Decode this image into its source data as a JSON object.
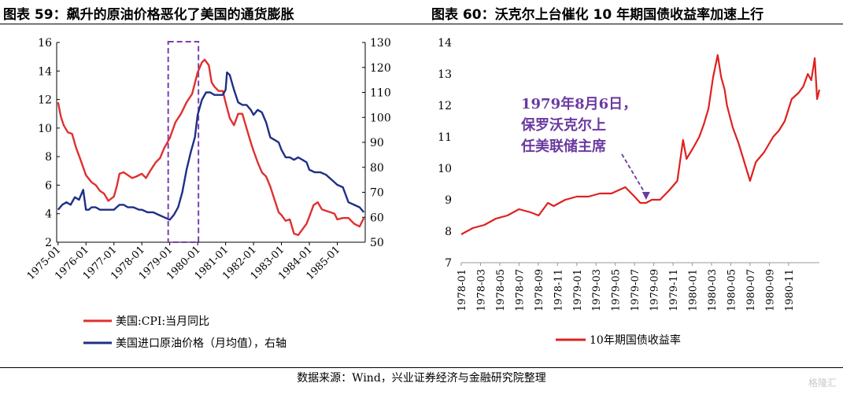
{
  "page": {
    "left_title": "图表 59：飙升的原油价格恶化了美国的通货膨胀",
    "right_title": "图表 60：沃克尔上台催化 10 年期国债收益率加速上行",
    "source": "数据来源：Wind，兴业证券经济与金融研究院整理",
    "watermark": "格隆汇"
  },
  "chart_data": [
    {
      "type": "line",
      "title": "图表 59：飙升的原油价格恶化了美国的通货膨胀",
      "x_ticks": [
        "1975-01",
        "1976-01",
        "1977-01",
        "1978-01",
        "1979-01",
        "1980-01",
        "1981-01",
        "1982-01",
        "1983-01",
        "1984-01",
        "1985-01"
      ],
      "ylim_left": [
        2,
        16
      ],
      "yticks_left": [
        "2",
        "4",
        "6",
        "8",
        "10",
        "12",
        "14",
        "16"
      ],
      "ylim_right": [
        50,
        130
      ],
      "yticks_right": [
        "50",
        "60",
        "70",
        "80",
        "90",
        "100",
        "110",
        "120",
        "130"
      ],
      "highlight_box": {
        "x_from": "1979-01",
        "x_to": "1980-01"
      },
      "legend_position": "bottom-left",
      "series": [
        {
          "name": "美国:CPI:当月同比",
          "axis": "left",
          "color": "#e03030",
          "x": [
            1975.0,
            1975.1,
            1975.2,
            1975.35,
            1975.5,
            1975.65,
            1975.8,
            1976.0,
            1976.2,
            1976.35,
            1976.5,
            1976.65,
            1976.8,
            1977.0,
            1977.1,
            1977.2,
            1977.35,
            1977.5,
            1977.65,
            1977.8,
            1978.0,
            1978.15,
            1978.3,
            1978.5,
            1978.65,
            1978.8,
            1979.0,
            1979.2,
            1979.4,
            1979.6,
            1979.8,
            1980.0,
            1980.15,
            1980.25,
            1980.4,
            1980.5,
            1980.6,
            1980.75,
            1980.9,
            1981.0,
            1981.15,
            1981.3,
            1981.45,
            1981.6,
            1981.75,
            1981.9,
            1982.0,
            1982.15,
            1982.3,
            1982.45,
            1982.6,
            1982.75,
            1982.9,
            1983.0,
            1983.15,
            1983.3,
            1983.45,
            1983.6,
            1983.75,
            1983.9,
            1984.0,
            1984.15,
            1984.3,
            1984.45,
            1984.6,
            1984.75,
            1984.9,
            1985.0,
            1985.2,
            1985.4,
            1985.6,
            1985.8,
            1985.95
          ],
          "values": [
            11.8,
            10.8,
            10.2,
            9.7,
            9.6,
            8.6,
            7.8,
            6.7,
            6.2,
            6.0,
            5.6,
            5.4,
            4.9,
            5.2,
            5.9,
            6.8,
            6.9,
            6.7,
            6.5,
            6.6,
            6.8,
            6.5,
            7.0,
            7.6,
            7.9,
            8.6,
            9.3,
            10.4,
            11.0,
            11.8,
            12.4,
            13.9,
            14.6,
            14.8,
            14.4,
            13.2,
            12.9,
            12.6,
            12.6,
            11.8,
            10.7,
            10.2,
            11.0,
            11.0,
            10.0,
            9.0,
            8.4,
            7.6,
            6.9,
            6.6,
            5.9,
            5.0,
            4.1,
            3.9,
            3.5,
            3.6,
            2.6,
            2.5,
            2.9,
            3.3,
            3.8,
            4.6,
            4.8,
            4.3,
            4.2,
            4.1,
            4.0,
            3.6,
            3.7,
            3.7,
            3.3,
            3.1,
            3.7
          ]
        },
        {
          "name": "美国进口原油价格（月均值），右轴",
          "axis": "right",
          "color": "#1f2f86",
          "x": [
            1975.0,
            1975.15,
            1975.3,
            1975.45,
            1975.6,
            1975.75,
            1975.9,
            1976.0,
            1976.1,
            1976.2,
            1976.35,
            1976.5,
            1976.65,
            1976.8,
            1977.0,
            1977.2,
            1977.35,
            1977.5,
            1977.7,
            1977.9,
            1978.0,
            1978.2,
            1978.4,
            1978.6,
            1978.8,
            1979.0,
            1979.15,
            1979.3,
            1979.45,
            1979.6,
            1979.75,
            1979.9,
            1980.0,
            1980.15,
            1980.3,
            1980.45,
            1980.6,
            1980.75,
            1980.9,
            1981.0,
            1981.05,
            1981.15,
            1981.3,
            1981.45,
            1981.6,
            1981.75,
            1981.9,
            1982.0,
            1982.15,
            1982.3,
            1982.45,
            1982.6,
            1982.75,
            1982.9,
            1983.0,
            1983.15,
            1983.3,
            1983.45,
            1983.6,
            1983.75,
            1983.9,
            1984.0,
            1984.2,
            1984.4,
            1984.6,
            1984.8,
            1985.0,
            1985.2,
            1985.4,
            1985.6,
            1985.8,
            1985.95
          ],
          "values": [
            63,
            65,
            66,
            65,
            68,
            67,
            71,
            63,
            63,
            64,
            64,
            63,
            63,
            63,
            63,
            65,
            65,
            64,
            64,
            63,
            63,
            62,
            62,
            61,
            60,
            59,
            61,
            64,
            70,
            79,
            86,
            92,
            101,
            107,
            110,
            110,
            109,
            109,
            109,
            111,
            118,
            117,
            111,
            106,
            105,
            105,
            103,
            101,
            103,
            102,
            98,
            92,
            91,
            90,
            87,
            84,
            84,
            83,
            84,
            83,
            82,
            79,
            78,
            78,
            77,
            75,
            73,
            72,
            66,
            65,
            64,
            62
          ]
        }
      ]
    },
    {
      "type": "line",
      "title": "图表 60：沃克尔上台催化 10 年期国债收益率加速上行",
      "x_ticks": [
        "1978-01",
        "1978-03",
        "1978-05",
        "1978-07",
        "1978-09",
        "1978-11",
        "1979-01",
        "1979-03",
        "1979-05",
        "1979-07",
        "1979-09",
        "1979-11",
        "1980-01",
        "1980-03",
        "1980-05",
        "1980-07",
        "1980-09",
        "1980-11"
      ],
      "ylim": [
        7,
        14
      ],
      "yticks": [
        "7",
        "8",
        "9",
        "10",
        "11",
        "12",
        "13",
        "14"
      ],
      "legend_position": "bottom-center",
      "annotation": {
        "text_lines": [
          "1979年8月6日，",
          "保罗沃克尔上",
          "任美联储主席"
        ],
        "x": 1979.6,
        "y": 8.95
      },
      "series": [
        {
          "name": "10年期国债收益率",
          "color": "#e02020",
          "x": [
            1978.0,
            1978.05,
            1978.1,
            1978.2,
            1978.3,
            1978.4,
            1978.5,
            1978.6,
            1978.67,
            1978.75,
            1978.8,
            1978.9,
            1979.0,
            1979.1,
            1979.2,
            1979.3,
            1979.42,
            1979.5,
            1979.55,
            1979.6,
            1979.65,
            1979.72,
            1979.8,
            1979.87,
            1979.92,
            1979.95,
            1980.0,
            1980.03,
            1980.06,
            1980.1,
            1980.14,
            1980.18,
            1980.22,
            1980.25,
            1980.28,
            1980.3,
            1980.35,
            1980.4,
            1980.45,
            1980.5,
            1980.55,
            1980.62,
            1980.7,
            1980.75,
            1980.8,
            1980.86,
            1980.92,
            1980.96,
            1981.0,
            1981.03,
            1981.06,
            1981.08,
            1981.1
          ],
          "values": [
            7.9,
            8.0,
            8.1,
            8.2,
            8.4,
            8.5,
            8.7,
            8.6,
            8.5,
            8.9,
            8.8,
            9.0,
            9.1,
            9.1,
            9.2,
            9.2,
            9.4,
            9.1,
            8.9,
            8.9,
            9.0,
            9.0,
            9.3,
            9.6,
            10.9,
            10.3,
            10.6,
            10.8,
            11.0,
            11.4,
            11.9,
            12.9,
            13.6,
            12.9,
            12.5,
            12.0,
            11.3,
            10.8,
            10.2,
            9.6,
            10.2,
            10.5,
            11.0,
            11.2,
            11.5,
            12.2,
            12.4,
            12.6,
            13.0,
            12.8,
            13.5,
            12.2,
            12.5
          ]
        }
      ]
    }
  ]
}
